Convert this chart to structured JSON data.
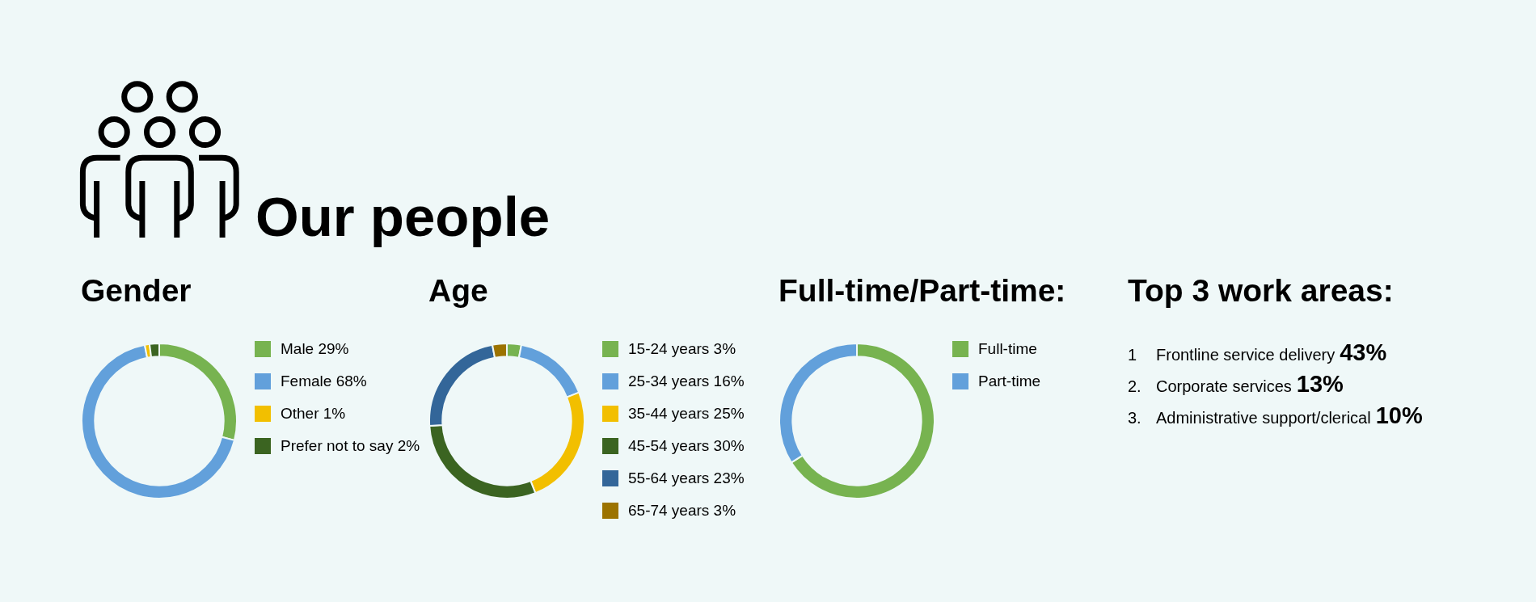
{
  "chart_data": [
    {
      "type": "other",
      "title": "Our people"
    },
    {
      "type": "donut",
      "title": "Gender",
      "categories": [
        "Male 29%",
        "Female 68%",
        "Other 1%",
        "Prefer not to say 2%"
      ],
      "values": [
        29,
        68,
        1,
        2
      ],
      "colors": [
        "#77b350",
        "#62a0db",
        "#f2bf00",
        "#3b6421"
      ],
      "legend": "right"
    },
    {
      "type": "donut",
      "title": "Age",
      "categories": [
        "15-24 years 3%",
        "25-34 years 16%",
        "35-44 years 25%",
        "45-54 years 30%",
        "55-64 years 23%",
        "65-74 years 3%"
      ],
      "values": [
        3,
        16,
        25,
        30,
        23,
        3
      ],
      "colors": [
        "#77b350",
        "#62a0db",
        "#f2bf00",
        "#3b6421",
        "#336699",
        "#9c7300"
      ],
      "legend": "right"
    },
    {
      "type": "donut",
      "title": "Full-time/Part-time:",
      "categories": [
        "Full-time",
        "Part-time"
      ],
      "values": [
        66,
        34
      ],
      "colors": [
        "#77b350",
        "#62a0db"
      ],
      "legend": "right"
    },
    {
      "type": "other",
      "title": "Top 3 work areas:",
      "categories": [
        "Frontline service delivery",
        "Corporate services",
        "Administrative support/clerical"
      ],
      "value_labels": [
        "43%",
        "13%",
        "10%"
      ],
      "annotations": [
        "1",
        "2.",
        "3."
      ]
    }
  ]
}
